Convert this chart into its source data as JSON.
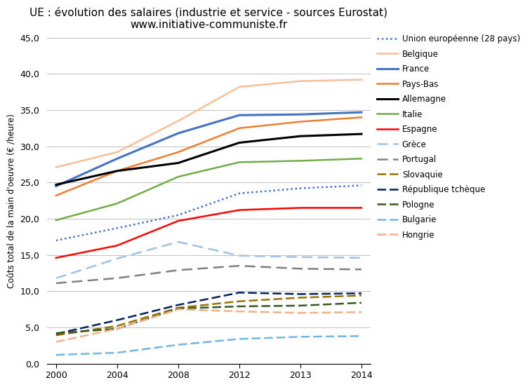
{
  "title": "UE : évolution des salaires (industrie et service - sources Eurostat)\nwww.initiative-communiste.fr",
  "ylabel": "Coûts total de la main d'oeuvre (€ /heure)",
  "ylim": [
    0,
    45
  ],
  "yticks": [
    0,
    5,
    10,
    15,
    20,
    25,
    30,
    35,
    40,
    45
  ],
  "year_labels": [
    "2000",
    "2004",
    "2008",
    "2012",
    "2013",
    "2014"
  ],
  "series": [
    {
      "label": "Union européenne (28 pays)",
      "color": "#4472C4",
      "linestyle": "dotted",
      "linewidth": 1.8,
      "values": [
        17.0,
        18.7,
        20.5,
        23.5,
        24.2,
        24.6
      ]
    },
    {
      "label": "Belgique",
      "color": "#F4C09A",
      "linestyle": "solid",
      "linewidth": 1.8,
      "values": [
        27.1,
        29.2,
        33.5,
        38.2,
        39.0,
        39.2
      ]
    },
    {
      "label": "France",
      "color": "#4472C4",
      "linestyle": "solid",
      "linewidth": 2.2,
      "values": [
        24.5,
        28.3,
        31.8,
        34.3,
        34.4,
        34.7
      ]
    },
    {
      "label": "Pays-Bas",
      "color": "#ED7D31",
      "linestyle": "solid",
      "linewidth": 1.8,
      "values": [
        23.2,
        26.6,
        29.2,
        32.5,
        33.4,
        34.0
      ]
    },
    {
      "label": "Allemagne",
      "color": "#000000",
      "linestyle": "solid",
      "linewidth": 2.2,
      "values": [
        24.7,
        26.6,
        27.7,
        30.5,
        31.4,
        31.7
      ]
    },
    {
      "label": "Italie",
      "color": "#70AD47",
      "linestyle": "solid",
      "linewidth": 1.8,
      "values": [
        19.8,
        22.1,
        25.8,
        27.8,
        28.0,
        28.3
      ]
    },
    {
      "label": "Espagne",
      "color": "#FF0000",
      "linestyle": "solid",
      "linewidth": 1.8,
      "values": [
        14.6,
        16.3,
        19.7,
        21.2,
        21.5,
        21.5
      ]
    },
    {
      "label": "Grèce",
      "color": "#9DC3E6",
      "linestyle": "dashed",
      "linewidth": 1.8,
      "values": [
        11.8,
        14.5,
        16.8,
        14.9,
        14.7,
        14.6
      ]
    },
    {
      "label": "Portugal",
      "color": "#808080",
      "linestyle": "dashed",
      "linewidth": 1.8,
      "values": [
        11.1,
        11.8,
        12.9,
        13.5,
        13.1,
        13.0
      ]
    },
    {
      "label": "Slovaquie",
      "color": "#997300",
      "linestyle": "dashed",
      "linewidth": 1.8,
      "values": [
        3.9,
        5.2,
        7.7,
        8.6,
        9.1,
        9.4
      ]
    },
    {
      "label": "République tchèque",
      "color": "#002060",
      "linestyle": "dashed",
      "linewidth": 1.8,
      "values": [
        4.1,
        6.0,
        8.1,
        9.8,
        9.6,
        9.7
      ]
    },
    {
      "label": "Pologne",
      "color": "#375623",
      "linestyle": "dashed",
      "linewidth": 1.8,
      "values": [
        4.2,
        4.8,
        7.6,
        7.9,
        8.0,
        8.4
      ]
    },
    {
      "label": "Bulgarie",
      "color": "#74B6E3",
      "linestyle": "dashed",
      "linewidth": 1.8,
      "values": [
        1.2,
        1.5,
        2.6,
        3.4,
        3.7,
        3.8
      ]
    },
    {
      "label": "Hongrie",
      "color": "#F4B183",
      "linestyle": "dashed",
      "linewidth": 1.8,
      "values": [
        3.0,
        4.8,
        7.5,
        7.2,
        7.0,
        7.1
      ]
    }
  ]
}
